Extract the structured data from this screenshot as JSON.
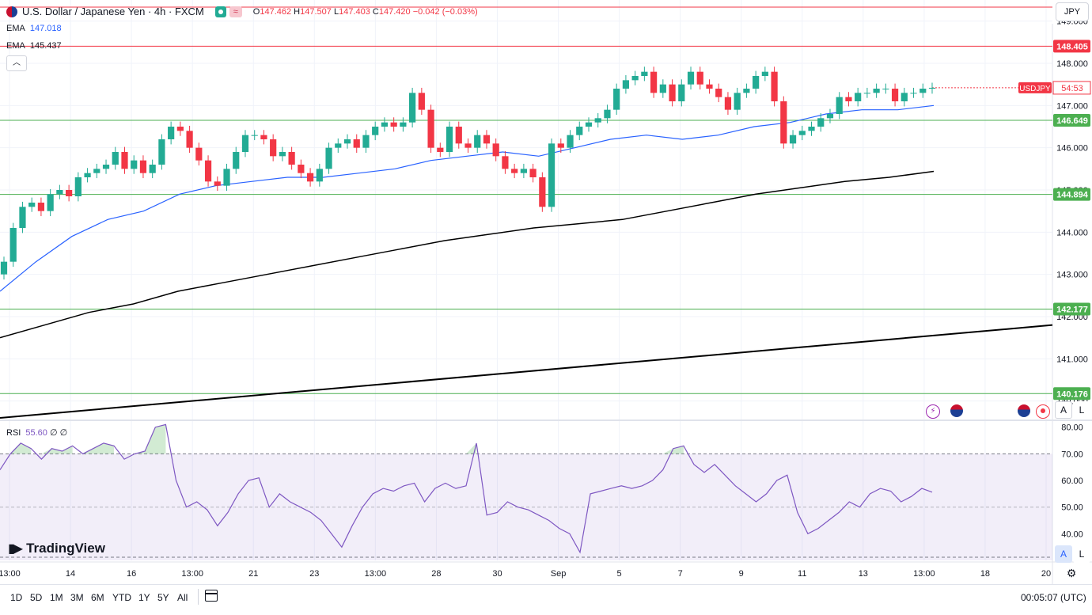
{
  "header": {
    "title": "U.S. Dollar / Japanese Yen · 4h · FXCM",
    "ohlc": {
      "o_label": "O",
      "o": "147.462",
      "h_label": "H",
      "h": "147.507",
      "l_label": "L",
      "l": "147.403",
      "c_label": "C",
      "c": "147.420",
      "change": "−0.042 (−0.03%)"
    },
    "ema1_label": "EMA",
    "ema1_value": "147.018",
    "ema2_label": "EMA",
    "ema2_value": "145.437",
    "currency_button": "JPY"
  },
  "rsi": {
    "label": "RSI",
    "value": "55.60",
    "extra": "∅ ∅"
  },
  "logo_text": "TradingView",
  "scale_buttons": {
    "a": "A",
    "l": "L"
  },
  "timeframes": [
    "1D",
    "5D",
    "1M",
    "3M",
    "6M",
    "YTD",
    "1Y",
    "5Y",
    "All"
  ],
  "clock": "00:05:07 (UTC)",
  "colors": {
    "up": "#22ab94",
    "down": "#f23645",
    "ema_fast": "#2962ff",
    "ema_slow": "#000000",
    "rsi": "#7e57c2",
    "support": "#4caf50",
    "resistance": "#f23645"
  },
  "icons": [
    "flag-usd-jpy-icon",
    "market-open-icon",
    "wave-icon",
    "chevron-up-icon",
    "lightning-icon",
    "flag-us-icon",
    "record-icon",
    "calendar-icon",
    "gear-icon",
    "tradingview-logo-icon"
  ],
  "chart_data": {
    "type": "candlestick",
    "price_axis": {
      "min": 139.6,
      "max": 149.5,
      "ticks": [
        140.0,
        141.0,
        142.0,
        143.0,
        144.0,
        145.0,
        146.0,
        147.0,
        148.0,
        149.0
      ]
    },
    "time_axis": {
      "labels": [
        "13:00",
        "14",
        "16",
        "13:00",
        "21",
        "23",
        "13:00",
        "28",
        "30",
        "Sep",
        "5",
        "7",
        "9",
        "11",
        "13",
        "13:00",
        "18",
        "20"
      ]
    },
    "horizontal_levels": [
      {
        "value": 148.405,
        "label": "148.405",
        "color": "#f23645"
      },
      {
        "value": 146.649,
        "label": "146.649",
        "color": "#4caf50"
      },
      {
        "value": 144.894,
        "label": "144.894",
        "color": "#4caf50"
      },
      {
        "value": 142.177,
        "label": "142.177",
        "color": "#4caf50"
      },
      {
        "value": 140.176,
        "label": "140.176",
        "color": "#4caf50"
      }
    ],
    "current_price_label": {
      "name": "USDJPY",
      "countdown": "54:53",
      "value": 147.42
    },
    "trendline": {
      "start": 139.6,
      "end": 141.8
    },
    "ema_fast": [
      142.6,
      143.3,
      143.9,
      144.3,
      144.5,
      144.9,
      145.1,
      145.2,
      145.3,
      145.3,
      145.4,
      145.5,
      145.7,
      145.8,
      145.9,
      145.8,
      146.0,
      146.2,
      146.3,
      146.2,
      146.3,
      146.5,
      146.6,
      146.8,
      146.9,
      146.9,
      147.0
    ],
    "ema_slow": [
      141.5,
      141.8,
      142.1,
      142.3,
      142.6,
      142.8,
      143.0,
      143.2,
      143.4,
      143.6,
      143.8,
      143.95,
      144.1,
      144.2,
      144.3,
      144.5,
      144.7,
      144.9,
      145.05,
      145.2,
      145.3,
      145.44
    ],
    "candles_close": [
      143.3,
      144.1,
      144.6,
      144.7,
      144.5,
      144.9,
      145.0,
      144.85,
      145.3,
      145.4,
      145.5,
      145.6,
      145.9,
      145.5,
      145.7,
      145.4,
      145.6,
      146.2,
      146.5,
      146.4,
      146.0,
      145.7,
      145.2,
      145.1,
      145.5,
      145.9,
      146.3,
      146.3,
      146.2,
      145.8,
      145.9,
      145.6,
      145.4,
      145.2,
      145.5,
      146.0,
      146.1,
      146.2,
      146.0,
      146.3,
      146.5,
      146.6,
      146.5,
      146.6,
      147.3,
      146.9,
      146.0,
      145.9,
      146.5,
      146.1,
      146.0,
      146.3,
      146.1,
      145.8,
      145.5,
      145.4,
      145.5,
      145.3,
      144.6,
      146.1,
      146.0,
      146.3,
      146.5,
      146.6,
      146.7,
      146.9,
      147.4,
      147.6,
      147.7,
      147.8,
      147.3,
      147.5,
      147.1,
      147.5,
      147.8,
      147.5,
      147.4,
      147.2,
      146.9,
      147.3,
      147.4,
      147.7,
      147.8,
      147.1,
      146.1,
      146.3,
      146.4,
      146.5,
      146.7,
      146.8,
      147.2,
      147.1,
      147.3,
      147.3,
      147.4,
      147.4,
      147.1,
      147.3,
      147.3,
      147.4,
      147.42
    ],
    "rsi_series": [
      64,
      70,
      74,
      72,
      68,
      72,
      71,
      73,
      70,
      72,
      74,
      73,
      68,
      70,
      71,
      80,
      81,
      60,
      50,
      52,
      49,
      43,
      48,
      55,
      60,
      61,
      50,
      55,
      52,
      50,
      48,
      45,
      40,
      35,
      43,
      50,
      55,
      57,
      56,
      58,
      59,
      52,
      57,
      59,
      57,
      58,
      74,
      47,
      48,
      52,
      50,
      49,
      47,
      45,
      42,
      40,
      33,
      55,
      56,
      57,
      58,
      57,
      58,
      60,
      64,
      72,
      73,
      66,
      63,
      66,
      62,
      58,
      55,
      52,
      55,
      60,
      62,
      48,
      40,
      42,
      45,
      48,
      52,
      50,
      55,
      57,
      56,
      52,
      54,
      57,
      55.6
    ],
    "rsi_axis": {
      "min": 30,
      "max": 82,
      "ticks": [
        40,
        50,
        60,
        70,
        80
      ],
      "band": [
        30,
        70
      ]
    }
  }
}
